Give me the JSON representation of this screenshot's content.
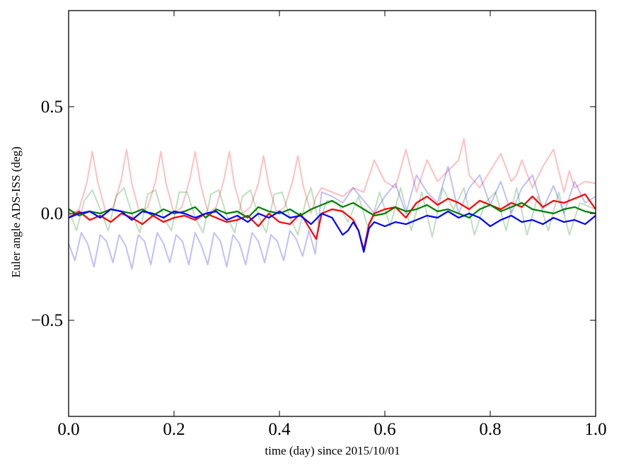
{
  "chart_data": {
    "type": "line",
    "xlabel": "time (day) since 2015/10/01",
    "ylabel": "Euler angle ADS-ISS (deg)",
    "xlim": [
      0.0,
      1.0
    ],
    "ylim": [
      -0.95,
      0.95
    ],
    "x_ticks": [
      0.0,
      0.2,
      0.4,
      0.6,
      0.8,
      1.0
    ],
    "x_tick_labels": [
      "0.0",
      "0.2",
      "0.4",
      "0.6",
      "0.8",
      "1.0"
    ],
    "y_ticks": [
      -0.5,
      0.0,
      0.5
    ],
    "y_tick_labels": [
      "−0.5",
      "0.0",
      "0.5"
    ],
    "grid": false,
    "legend": "none",
    "series": [
      {
        "color": "#ff0000",
        "opacity": 0.25,
        "x": [
          0.0,
          0.02,
          0.035,
          0.045,
          0.055,
          0.07,
          0.085,
          0.1,
          0.11,
          0.12,
          0.135,
          0.15,
          0.165,
          0.175,
          0.185,
          0.2,
          0.215,
          0.23,
          0.24,
          0.25,
          0.265,
          0.28,
          0.295,
          0.305,
          0.315,
          0.33,
          0.345,
          0.36,
          0.37,
          0.38,
          0.395,
          0.41,
          0.425,
          0.435,
          0.445,
          0.46,
          0.47,
          0.48,
          0.5,
          0.52,
          0.54,
          0.56,
          0.58,
          0.6,
          0.62,
          0.64,
          0.65,
          0.66,
          0.68,
          0.7,
          0.72,
          0.74,
          0.75,
          0.76,
          0.78,
          0.8,
          0.82,
          0.84,
          0.85,
          0.86,
          0.88,
          0.9,
          0.92,
          0.94,
          0.95,
          0.96,
          0.98,
          1.0
        ],
        "y": [
          -0.01,
          0.02,
          0.15,
          0.29,
          0.15,
          0.01,
          0.03,
          0.16,
          0.3,
          0.14,
          0.0,
          0.03,
          0.15,
          0.29,
          0.14,
          0.0,
          0.03,
          0.16,
          0.29,
          0.14,
          0.0,
          0.03,
          0.16,
          0.29,
          0.13,
          0.0,
          0.03,
          0.14,
          0.27,
          0.13,
          0.0,
          0.03,
          0.15,
          0.27,
          0.13,
          0.0,
          0.08,
          0.12,
          0.1,
          0.08,
          0.12,
          0.1,
          0.25,
          0.15,
          0.12,
          0.3,
          0.2,
          0.1,
          0.25,
          0.15,
          0.2,
          0.25,
          0.35,
          0.18,
          0.12,
          0.2,
          0.28,
          0.15,
          0.18,
          0.25,
          0.12,
          0.22,
          0.3,
          0.1,
          0.2,
          0.12,
          0.15,
          0.14
        ]
      },
      {
        "color": "#008000",
        "opacity": 0.25,
        "x": [
          0.0,
          0.015,
          0.03,
          0.045,
          0.06,
          0.075,
          0.09,
          0.105,
          0.12,
          0.135,
          0.15,
          0.165,
          0.18,
          0.195,
          0.21,
          0.225,
          0.24,
          0.255,
          0.27,
          0.285,
          0.3,
          0.315,
          0.33,
          0.345,
          0.36,
          0.375,
          0.39,
          0.405,
          0.42,
          0.435,
          0.45,
          0.46,
          0.475,
          0.49,
          0.51,
          0.53,
          0.55,
          0.57,
          0.59,
          0.61,
          0.63,
          0.65,
          0.67,
          0.69,
          0.71,
          0.73,
          0.75,
          0.77,
          0.79,
          0.81,
          0.83,
          0.85,
          0.87,
          0.89,
          0.91,
          0.93,
          0.95,
          0.97,
          1.0
        ],
        "y": [
          0.02,
          -0.08,
          0.06,
          0.11,
          0.02,
          -0.08,
          0.08,
          0.12,
          0.0,
          -0.09,
          0.09,
          0.11,
          -0.02,
          -0.08,
          0.1,
          0.1,
          -0.02,
          -0.09,
          0.09,
          0.11,
          -0.01,
          -0.09,
          0.08,
          0.11,
          -0.01,
          -0.09,
          0.09,
          0.1,
          -0.02,
          -0.1,
          0.06,
          0.12,
          -0.05,
          0.06,
          0.05,
          -0.04,
          0.08,
          -0.08,
          0.1,
          -0.06,
          0.12,
          -0.08,
          0.1,
          -0.11,
          0.12,
          0.02,
          0.12,
          -0.1,
          0.05,
          0.1,
          -0.08,
          0.12,
          -0.1,
          0.08,
          -0.08,
          0.1,
          -0.1,
          0.05,
          0.02
        ]
      },
      {
        "color": "#0000ff",
        "opacity": 0.25,
        "x": [
          0.0,
          0.012,
          0.024,
          0.036,
          0.048,
          0.06,
          0.072,
          0.084,
          0.096,
          0.108,
          0.12,
          0.132,
          0.144,
          0.156,
          0.168,
          0.18,
          0.192,
          0.204,
          0.216,
          0.228,
          0.24,
          0.252,
          0.264,
          0.276,
          0.288,
          0.3,
          0.312,
          0.324,
          0.336,
          0.348,
          0.36,
          0.372,
          0.384,
          0.396,
          0.408,
          0.42,
          0.432,
          0.444,
          0.456,
          0.468,
          0.48,
          0.5,
          0.52,
          0.54,
          0.56,
          0.58,
          0.6,
          0.62,
          0.64,
          0.66,
          0.68,
          0.7,
          0.72,
          0.74,
          0.76,
          0.78,
          0.8,
          0.82,
          0.84,
          0.86,
          0.88,
          0.9,
          0.92,
          0.94,
          0.96,
          0.98,
          1.0
        ],
        "y": [
          -0.14,
          -0.22,
          -0.09,
          -0.14,
          -0.25,
          -0.1,
          -0.13,
          -0.23,
          -0.1,
          -0.15,
          -0.26,
          -0.1,
          -0.13,
          -0.24,
          -0.09,
          -0.14,
          -0.23,
          -0.1,
          -0.13,
          -0.24,
          -0.09,
          -0.15,
          -0.24,
          -0.09,
          -0.13,
          -0.25,
          -0.1,
          -0.14,
          -0.24,
          -0.09,
          -0.13,
          -0.23,
          -0.1,
          -0.13,
          -0.22,
          -0.08,
          -0.12,
          -0.2,
          -0.08,
          -0.19,
          0.1,
          0.08,
          0.05,
          0.12,
          0.06,
          0.0,
          0.08,
          0.14,
          0.0,
          0.18,
          0.1,
          0.05,
          0.22,
          0.0,
          0.12,
          0.18,
          0.04,
          0.15,
          0.0,
          0.12,
          0.18,
          0.02,
          0.13,
          0.0,
          0.15,
          0.05,
          0.08
        ]
      },
      {
        "color": "#ff0000",
        "opacity": 1.0,
        "x": [
          0.0,
          0.02,
          0.04,
          0.06,
          0.08,
          0.1,
          0.12,
          0.14,
          0.16,
          0.18,
          0.2,
          0.22,
          0.24,
          0.26,
          0.28,
          0.3,
          0.32,
          0.34,
          0.36,
          0.38,
          0.4,
          0.42,
          0.44,
          0.46,
          0.47,
          0.48,
          0.5,
          0.52,
          0.54,
          0.55,
          0.56,
          0.57,
          0.58,
          0.6,
          0.62,
          0.64,
          0.66,
          0.68,
          0.7,
          0.72,
          0.74,
          0.76,
          0.78,
          0.8,
          0.82,
          0.84,
          0.86,
          0.88,
          0.9,
          0.92,
          0.94,
          0.96,
          0.98,
          1.0
        ],
        "y": [
          -0.02,
          0.01,
          -0.03,
          -0.01,
          -0.04,
          0.0,
          -0.02,
          -0.05,
          -0.01,
          -0.04,
          -0.02,
          -0.01,
          -0.03,
          0.0,
          -0.02,
          -0.04,
          -0.03,
          -0.01,
          -0.06,
          0.0,
          -0.04,
          -0.05,
          0.0,
          -0.08,
          -0.12,
          0.0,
          0.02,
          0.01,
          -0.03,
          -0.08,
          -0.17,
          -0.05,
          0.0,
          0.02,
          0.03,
          -0.02,
          0.05,
          0.08,
          0.04,
          0.07,
          0.05,
          0.02,
          0.06,
          0.04,
          0.02,
          0.05,
          0.03,
          0.08,
          0.03,
          0.06,
          0.05,
          0.07,
          0.09,
          0.02
        ]
      },
      {
        "color": "#008000",
        "opacity": 1.0,
        "x": [
          0.0,
          0.02,
          0.04,
          0.06,
          0.08,
          0.1,
          0.12,
          0.14,
          0.16,
          0.18,
          0.2,
          0.22,
          0.24,
          0.26,
          0.28,
          0.3,
          0.32,
          0.34,
          0.36,
          0.38,
          0.4,
          0.42,
          0.44,
          0.46,
          0.48,
          0.5,
          0.52,
          0.54,
          0.56,
          0.58,
          0.6,
          0.62,
          0.64,
          0.66,
          0.68,
          0.7,
          0.72,
          0.74,
          0.76,
          0.78,
          0.8,
          0.82,
          0.84,
          0.86,
          0.88,
          0.9,
          0.92,
          0.94,
          0.96,
          0.98,
          1.0
        ],
        "y": [
          0.02,
          -0.01,
          0.01,
          0.0,
          0.02,
          0.01,
          0.0,
          0.02,
          -0.01,
          0.02,
          0.0,
          0.01,
          0.03,
          -0.02,
          0.02,
          0.0,
          0.01,
          -0.02,
          0.03,
          0.01,
          0.0,
          0.02,
          -0.01,
          0.02,
          0.04,
          0.06,
          0.03,
          0.05,
          0.02,
          -0.01,
          0.0,
          0.03,
          0.01,
          0.02,
          0.04,
          0.01,
          0.02,
          0.0,
          -0.02,
          0.02,
          0.04,
          0.01,
          0.03,
          0.05,
          0.02,
          0.01,
          0.0,
          0.02,
          0.03,
          0.01,
          0.0
        ]
      },
      {
        "color": "#0000ff",
        "opacity": 1.0,
        "x": [
          0.0,
          0.02,
          0.04,
          0.06,
          0.08,
          0.1,
          0.12,
          0.14,
          0.16,
          0.18,
          0.2,
          0.22,
          0.24,
          0.26,
          0.28,
          0.3,
          0.32,
          0.34,
          0.36,
          0.38,
          0.4,
          0.42,
          0.44,
          0.46,
          0.48,
          0.5,
          0.52,
          0.53,
          0.54,
          0.55,
          0.56,
          0.57,
          0.58,
          0.6,
          0.62,
          0.64,
          0.66,
          0.68,
          0.7,
          0.72,
          0.74,
          0.76,
          0.78,
          0.8,
          0.82,
          0.84,
          0.86,
          0.88,
          0.9,
          0.92,
          0.94,
          0.96,
          0.98,
          1.0
        ],
        "y": [
          -0.02,
          0.0,
          0.01,
          -0.02,
          0.02,
          0.01,
          -0.03,
          0.01,
          0.0,
          -0.02,
          0.01,
          0.0,
          -0.02,
          0.0,
          0.01,
          -0.03,
          -0.01,
          -0.04,
          0.0,
          -0.02,
          0.01,
          -0.02,
          -0.01,
          -0.05,
          0.0,
          -0.02,
          -0.1,
          -0.08,
          -0.04,
          -0.08,
          -0.18,
          -0.07,
          -0.04,
          -0.06,
          -0.04,
          -0.05,
          -0.03,
          -0.01,
          -0.02,
          0.01,
          -0.02,
          0.0,
          -0.02,
          -0.06,
          -0.03,
          -0.01,
          -0.04,
          -0.03,
          -0.05,
          -0.02,
          -0.04,
          -0.03,
          -0.05,
          -0.01
        ]
      }
    ]
  }
}
